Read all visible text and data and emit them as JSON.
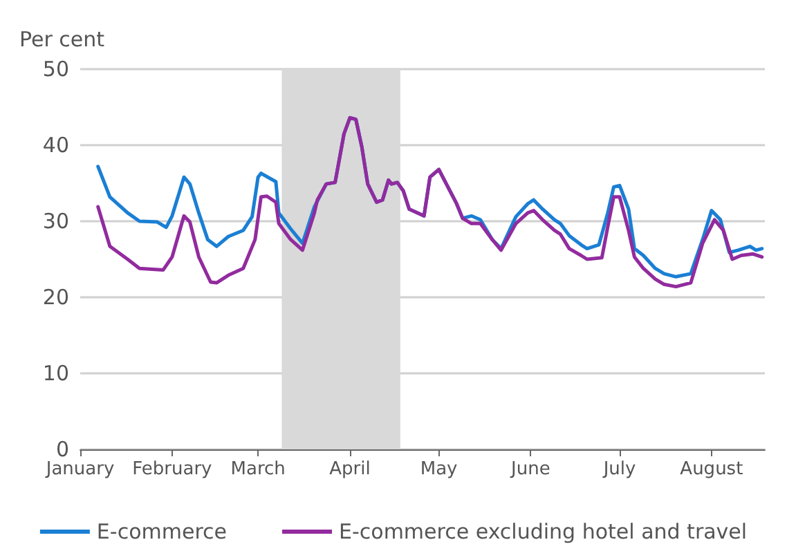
{
  "chart_data": {
    "type": "line",
    "ylabel": "Per cent",
    "ylim": [
      0,
      50
    ],
    "yticks": [
      0,
      10,
      20,
      30,
      40,
      50
    ],
    "xlim": [
      "--01-01",
      "--08-19"
    ],
    "xticks": [
      {
        "value": "--01-01",
        "label": "January"
      },
      {
        "value": "--02-01",
        "label": "February"
      },
      {
        "value": "--03-01",
        "label": "March"
      },
      {
        "value": "--04-01",
        "label": "April"
      },
      {
        "value": "--05-01",
        "label": "May"
      },
      {
        "value": "--06-01",
        "label": "June"
      },
      {
        "value": "--07-01",
        "label": "July"
      },
      {
        "value": "--08-01",
        "label": "August"
      }
    ],
    "grid": "y",
    "legend": "bottom",
    "marker": "none",
    "line_style": "solid",
    "bands": [
      {
        "axis": "x",
        "from": "--03-09",
        "to": "--04-18",
        "color": "#d9d9d9"
      }
    ],
    "series": [
      {
        "name": "E-commerce",
        "color": "#1a7fd4",
        "x": [
          "--01-07",
          "--01-11",
          "--01-17",
          "--01-21",
          "--01-27",
          "--01-30",
          "--02-01",
          "--02-05",
          "--02-07",
          "--02-10",
          "--02-13",
          "--02-16",
          "--02-20",
          "--02-25",
          "--02-28",
          "--03-01",
          "--03-02",
          "--03-07",
          "--03-08",
          "--03-12",
          "--03-16",
          "--03-20",
          "--03-24",
          "--03-27",
          "--03-30",
          "--04-01",
          "--04-03",
          "--04-05",
          "--04-07",
          "--04-10",
          "--04-12",
          "--04-14",
          "--04-15",
          "--04-17",
          "--04-19",
          "--04-21",
          "--04-26",
          "--04-28",
          "--05-01",
          "--05-07",
          "--05-09",
          "--05-12",
          "--05-15",
          "--05-19",
          "--05-22",
          "--05-27",
          "--05-31",
          "--06-02",
          "--06-05",
          "--06-09",
          "--06-11",
          "--06-14",
          "--06-18",
          "--06-20",
          "--06-24",
          "--06-27",
          "--06-29",
          "--07-01",
          "--07-04",
          "--07-06",
          "--07-09",
          "--07-13",
          "--07-16",
          "--07-20",
          "--07-25",
          "--07-29",
          "--08-01",
          "--08-04",
          "--08-07",
          "--08-10",
          "--08-14",
          "--08-16",
          "--08-18"
        ],
        "values": [
          37.2,
          33.2,
          31.1,
          30.0,
          29.9,
          29.2,
          30.7,
          35.8,
          34.9,
          31.1,
          27.6,
          26.7,
          28.0,
          28.8,
          30.6,
          35.8,
          36.3,
          35.2,
          31.1,
          29.0,
          27.1,
          31.9,
          34.9,
          35.1,
          41.5,
          43.6,
          43.4,
          39.8,
          34.9,
          32.5,
          32.8,
          35.4,
          34.9,
          35.1,
          34.0,
          31.6,
          30.7,
          35.8,
          36.8,
          32.3,
          30.4,
          30.7,
          30.2,
          27.6,
          26.4,
          30.6,
          32.3,
          32.8,
          31.6,
          30.2,
          29.7,
          28.1,
          26.9,
          26.4,
          26.9,
          31.1,
          34.5,
          34.7,
          31.6,
          26.4,
          25.5,
          23.8,
          23.1,
          22.7,
          23.1,
          27.6,
          31.4,
          30.2,
          25.9,
          26.2,
          26.7,
          26.2,
          26.4
        ]
      },
      {
        "name": "E-commerce excluding hotel and travel",
        "color": "#922b9e",
        "x": [
          "--01-07",
          "--01-11",
          "--01-17",
          "--01-21",
          "--01-29",
          "--02-01",
          "--02-05",
          "--02-07",
          "--02-10",
          "--02-14",
          "--02-16",
          "--02-20",
          "--02-25",
          "--02-29",
          "--03-02",
          "--03-04",
          "--03-07",
          "--03-08",
          "--03-12",
          "--03-16",
          "--03-20",
          "--03-21",
          "--03-24",
          "--03-27",
          "--03-30",
          "--04-01",
          "--04-03",
          "--04-05",
          "--04-07",
          "--04-10",
          "--04-12",
          "--04-14",
          "--04-15",
          "--04-17",
          "--04-19",
          "--04-21",
          "--04-26",
          "--04-28",
          "--05-01",
          "--05-07",
          "--05-09",
          "--05-12",
          "--05-15",
          "--05-19",
          "--05-22",
          "--05-27",
          "--05-31",
          "--06-02",
          "--06-05",
          "--06-09",
          "--06-11",
          "--06-14",
          "--06-18",
          "--06-20",
          "--06-25",
          "--06-27",
          "--06-29",
          "--07-01",
          "--07-04",
          "--07-06",
          "--07-09",
          "--07-13",
          "--07-16",
          "--07-20",
          "--07-25",
          "--07-29",
          "--08-02",
          "--08-05",
          "--08-08",
          "--08-11",
          "--08-15",
          "--08-18"
        ],
        "values": [
          31.9,
          26.7,
          25.0,
          23.8,
          23.6,
          25.3,
          30.7,
          29.9,
          25.3,
          22.0,
          21.9,
          22.9,
          23.8,
          27.6,
          33.2,
          33.3,
          32.5,
          29.7,
          27.6,
          26.2,
          31.1,
          32.8,
          34.9,
          35.1,
          41.5,
          43.6,
          43.4,
          39.8,
          34.9,
          32.5,
          32.8,
          35.4,
          34.9,
          35.1,
          34.0,
          31.6,
          30.7,
          35.8,
          36.8,
          32.3,
          30.4,
          29.7,
          29.7,
          27.6,
          26.2,
          29.7,
          31.1,
          31.4,
          30.2,
          28.8,
          28.3,
          26.4,
          25.5,
          25.0,
          25.2,
          29.3,
          33.2,
          33.2,
          28.8,
          25.3,
          23.8,
          22.4,
          21.7,
          21.4,
          21.9,
          27.1,
          30.2,
          28.8,
          25.0,
          25.5,
          25.7,
          25.3
        ]
      }
    ]
  }
}
